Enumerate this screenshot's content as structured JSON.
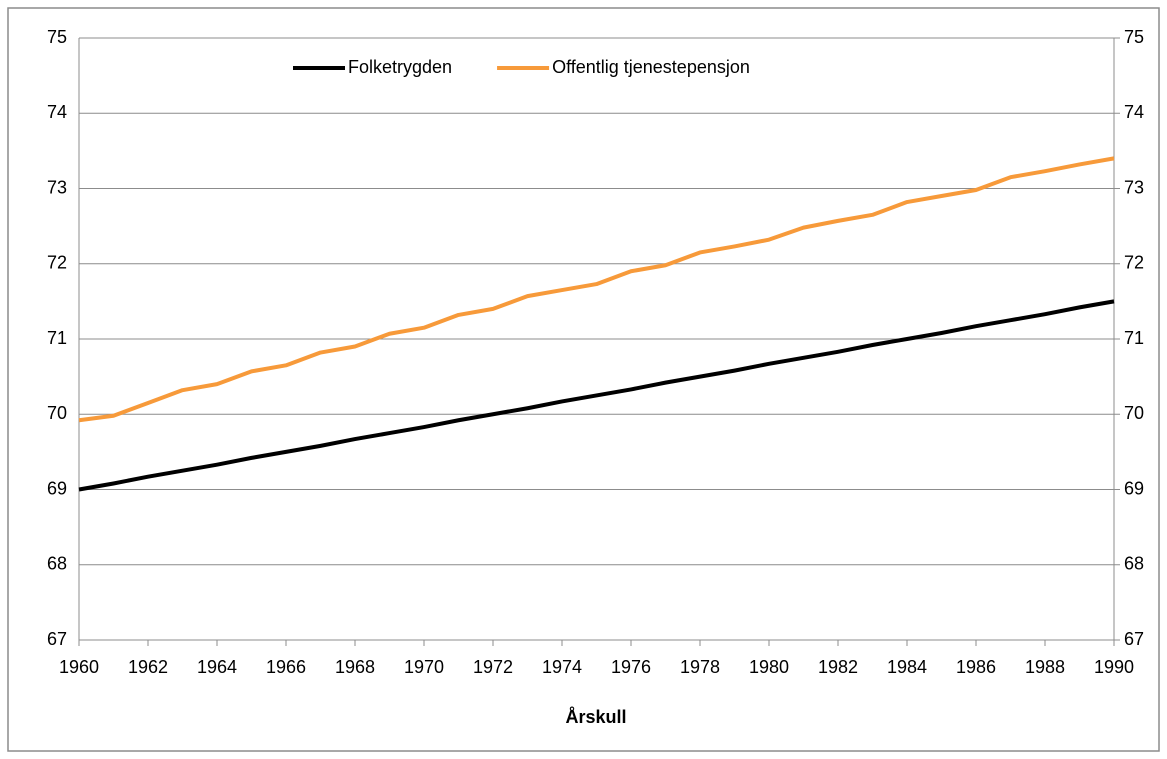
{
  "chart_data": {
    "type": "line",
    "x_label": "Årskull",
    "x": [
      1960,
      1961,
      1962,
      1963,
      1964,
      1965,
      1966,
      1967,
      1968,
      1969,
      1970,
      1971,
      1972,
      1973,
      1974,
      1975,
      1976,
      1977,
      1978,
      1979,
      1980,
      1981,
      1982,
      1983,
      1984,
      1985,
      1986,
      1987,
      1988,
      1989,
      1990
    ],
    "series": [
      {
        "name": "Folketrygden",
        "color": "#000000",
        "values": [
          69.0,
          69.08,
          69.17,
          69.25,
          69.33,
          69.42,
          69.5,
          69.58,
          69.67,
          69.75,
          69.83,
          69.92,
          70.0,
          70.08,
          70.17,
          70.25,
          70.33,
          70.42,
          70.5,
          70.58,
          70.67,
          70.75,
          70.83,
          70.92,
          71.0,
          71.08,
          71.17,
          71.25,
          71.33,
          71.42,
          71.5
        ]
      },
      {
        "name": "Offentlig tjenestepensjon",
        "color": "#f79a3a",
        "values": [
          69.92,
          69.98,
          70.15,
          70.32,
          70.4,
          70.57,
          70.65,
          70.82,
          70.9,
          71.07,
          71.15,
          71.32,
          71.4,
          71.57,
          71.65,
          71.73,
          71.9,
          71.98,
          72.15,
          72.23,
          72.32,
          72.48,
          72.57,
          72.65,
          72.82,
          72.9,
          72.98,
          73.15,
          73.23,
          73.32,
          73.4
        ]
      }
    ],
    "xlim": [
      1960,
      1990
    ],
    "xticks": [
      1960,
      1962,
      1964,
      1966,
      1968,
      1970,
      1972,
      1974,
      1976,
      1978,
      1980,
      1982,
      1984,
      1986,
      1988,
      1990
    ],
    "ylim": [
      67,
      75
    ],
    "yticks": [
      67,
      68,
      69,
      70,
      71,
      72,
      73,
      74,
      75
    ],
    "y2lim": [
      67,
      75
    ],
    "y2ticks": [
      67,
      68,
      69,
      70,
      71,
      72,
      73,
      74,
      75
    ],
    "grid": true,
    "legend": "top"
  }
}
